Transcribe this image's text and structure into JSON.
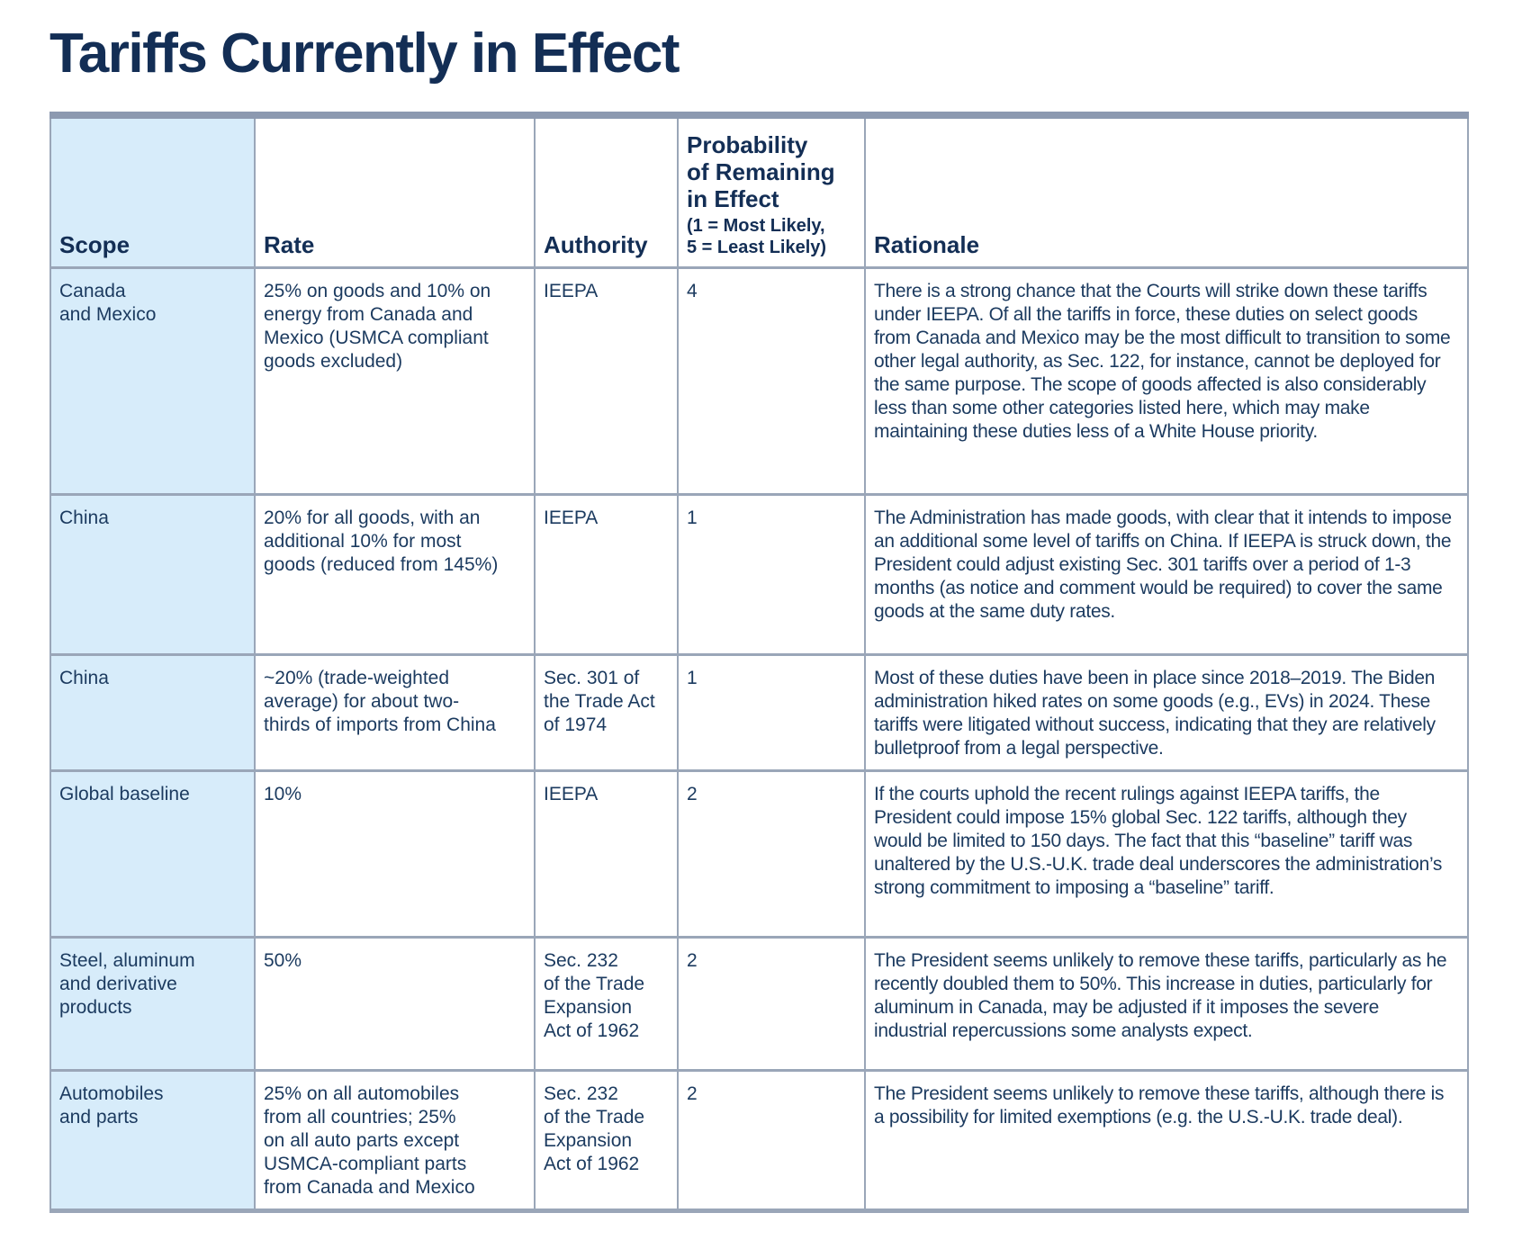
{
  "page": {
    "title": "Tariffs Currently in Effect"
  },
  "colors": {
    "title_navy": "#132E55",
    "text_navy": "#1B3A5F",
    "scope_column_bg": "#D7ECFA",
    "border_gray": "#9AA6B8",
    "border_top_gray": "#8C99B0"
  },
  "table": {
    "headers": {
      "scope": "Scope",
      "rate": "Rate",
      "authority": "Authority",
      "probability_title": "Probability\nof Remaining\nin Effect",
      "probability_note": "(1 = Most Likely,\n5 = Least Likely)",
      "rationale": "Rationale"
    },
    "rows": [
      {
        "scope": "Canada\nand Mexico",
        "rate": "25% on goods and 10% on\nenergy from Canada and\nMexico (USMCA compliant\ngoods excluded)",
        "authority": "IEEPA",
        "probability": "4",
        "rationale": "There is a strong chance that the Courts will strike down these tariffs under IEEPA. Of all the tariffs in force, these duties on select goods from Canada and Mexico may be the most difficult to transition to some other legal authority, as Sec. 122, for instance, cannot be deployed for the same purpose. The scope of goods affected is also considerably less than some other categories listed here, which may make maintaining these duties less of a White House priority."
      },
      {
        "scope": "China",
        "rate": "20% for all goods, with an\nadditional 10% for most\ngoods (reduced from 145%)",
        "authority": "IEEPA",
        "probability": "1",
        "rationale": "The Administration has made goods, with clear that it intends to impose an additional some level of tariffs on China. If IEEPA is struck down, the President could adjust existing Sec. 301 tariffs over a period of 1-3 months (as notice and comment would be required) to cover the same goods at the same duty rates."
      },
      {
        "scope": "China",
        "rate": "~20% (trade-weighted\naverage) for about two-\nthirds of imports from China",
        "authority": "Sec. 301 of\nthe Trade Act\nof 1974",
        "probability": "1",
        "rationale": "Most of these duties have been in place since 2018–2019. The Biden administration hiked rates on some goods (e.g., EVs) in 2024. These tariffs were litigated without success, indicating that they are relatively bulletproof from a legal perspective."
      },
      {
        "scope": "Global baseline",
        "rate": "10%",
        "authority": "IEEPA",
        "probability": "2",
        "rationale": "If the courts uphold the recent rulings against IEEPA tariffs, the President could impose 15% global Sec. 122 tariffs, although they would be limited to 150 days. The fact that this “baseline” tariff was unaltered by the U.S.-U.K. trade deal underscores the administration’s strong commitment to imposing a “baseline” tariff."
      },
      {
        "scope": "Steel, aluminum\nand derivative\nproducts",
        "rate": "50%",
        "authority": "Sec. 232\nof the Trade\nExpansion\nAct of 1962",
        "probability": "2",
        "rationale": "The President seems unlikely to remove these tariffs, particularly as he recently doubled them to 50%. This increase in duties, particularly for aluminum in Canada, may be adjusted if it imposes the severe industrial repercussions some analysts expect."
      },
      {
        "scope": "Automobiles\nand parts",
        "rate": "25% on all automobiles\nfrom all countries; 25%\non all auto parts except\nUSMCA-compliant parts\nfrom Canada and Mexico",
        "authority": "Sec. 232\nof the Trade\nExpansion\nAct of 1962",
        "probability": "2",
        "rationale": "The President seems unlikely to remove these tariffs, although there is a possibility for limited exemptions (e.g. the U.S.-U.K. trade deal)."
      }
    ]
  }
}
